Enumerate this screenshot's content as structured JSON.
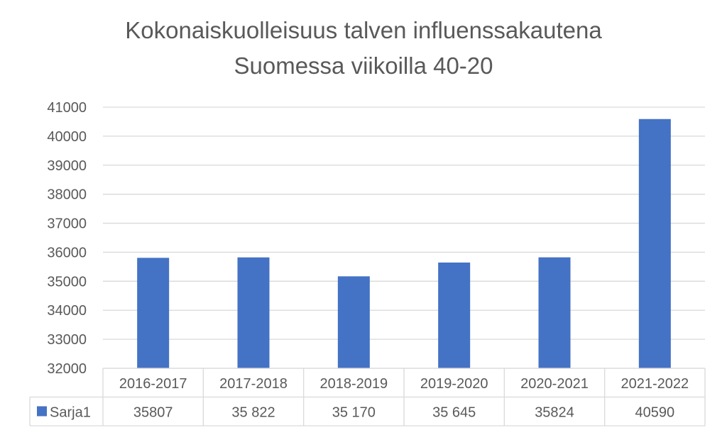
{
  "chart_data": {
    "type": "bar",
    "title": [
      "Kokonaiskuolleisuus talven influenssakautena",
      "Suomessa viikoilla 40-20"
    ],
    "categories": [
      "2016-2017",
      "2017-2018",
      "2018-2019",
      "2019-2020",
      "2020-2021",
      "2021-2022"
    ],
    "series": [
      {
        "name": "Sarja1",
        "values": [
          35807,
          35822,
          35170,
          35645,
          35824,
          40590
        ],
        "table_labels": [
          "35807",
          "35 822",
          "35 170",
          "35 645",
          "35824",
          "40590"
        ],
        "color": "#4472C4"
      }
    ],
    "ylim": [
      32000,
      41000
    ],
    "yticks": [
      "32000",
      "33000",
      "34000",
      "35000",
      "36000",
      "37000",
      "38000",
      "39000",
      "40000",
      "41000"
    ],
    "grid": true,
    "legend": "data-table",
    "xlabel": "",
    "ylabel": ""
  }
}
